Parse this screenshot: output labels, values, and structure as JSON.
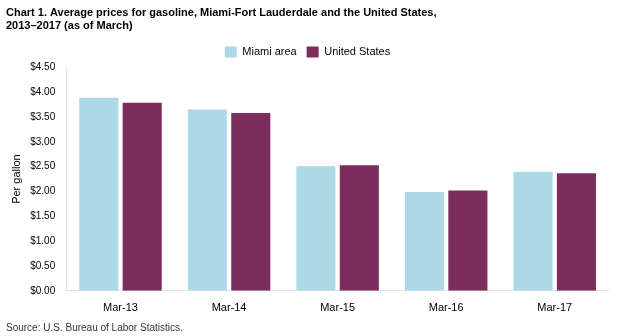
{
  "chart_data": {
    "type": "bar",
    "title": [
      "Chart 1. Average prices for gasoline, Miami-Fort Lauderdale and the United States,",
      "2013–2017 (as of March)"
    ],
    "ylabel": "Per gallon",
    "source": "Source: U.S. Bureau of Labor Statistics.",
    "categories": [
      "Mar-13",
      "Mar-14",
      "Mar-15",
      "Mar-16",
      "Mar-17"
    ],
    "series": [
      {
        "name": "Miami area",
        "color": "#add8e6",
        "values": [
          3.89,
          3.65,
          2.51,
          1.99,
          2.4
        ]
      },
      {
        "name": "United States",
        "color": "#7b2d5e",
        "values": [
          3.79,
          3.58,
          2.53,
          2.02,
          2.37
        ]
      }
    ],
    "ylim": [
      0,
      4.5
    ],
    "yticks": [
      {
        "value": 0.0,
        "label": "$0.00"
      },
      {
        "value": 0.5,
        "label": "$0.50"
      },
      {
        "value": 1.0,
        "label": "$1.00"
      },
      {
        "value": 1.5,
        "label": "$1.50"
      },
      {
        "value": 2.0,
        "label": "$2.00"
      },
      {
        "value": 2.5,
        "label": "$2.50"
      },
      {
        "value": 3.0,
        "label": "$3.00"
      },
      {
        "value": 3.5,
        "label": "$3.50"
      },
      {
        "value": 4.0,
        "label": "$4.00"
      },
      {
        "value": 4.5,
        "label": "$4.50"
      }
    ],
    "grid": false,
    "legend": "top"
  }
}
